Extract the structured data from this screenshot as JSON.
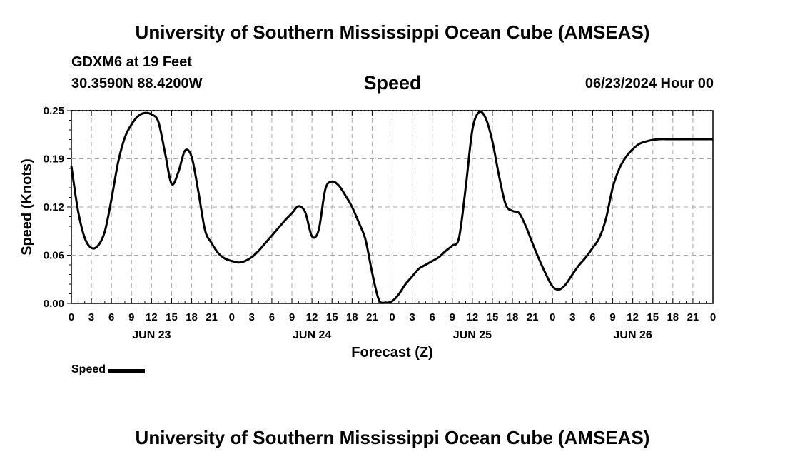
{
  "page": {
    "title_top": "University of Southern Mississippi Ocean Cube (AMSEAS)",
    "title_bottom": "University of Southern Mississippi Ocean Cube (AMSEAS)",
    "station": "GDXM6 at 19 Feet",
    "coords": "30.3590N  88.4200W",
    "variable": "Speed",
    "date": "06/23/2024 Hour 00"
  },
  "chart_data": {
    "type": "line",
    "title": "Speed",
    "xlabel": "Forecast (Z)",
    "ylabel": "Speed (Knots)",
    "ylim": [
      0,
      0.25
    ],
    "yticks": [
      "0.00",
      "0.06",
      "0.12",
      "0.19",
      "0.25"
    ],
    "xlim_hours": [
      0,
      96
    ],
    "xtick_labels": [
      "0",
      "3",
      "6",
      "9",
      "12",
      "15",
      "18",
      "21",
      "0",
      "3",
      "6",
      "9",
      "12",
      "15",
      "18",
      "21",
      "0",
      "3",
      "6",
      "9",
      "12",
      "15",
      "18",
      "21",
      "0",
      "3",
      "6",
      "9",
      "12",
      "15",
      "18",
      "21",
      "0"
    ],
    "day_labels": [
      "JUN 23",
      "JUN 24",
      "JUN 25",
      "JUN 26"
    ],
    "grid": true,
    "legend": "bottom-left",
    "series": [
      {
        "name": "Speed",
        "color": "#000000",
        "x_hours": [
          0,
          1,
          2,
          3,
          4,
          5,
          6,
          7,
          8,
          9,
          10,
          11,
          12,
          13,
          14,
          15,
          16,
          17,
          18,
          19,
          20,
          21,
          22,
          23,
          24,
          25,
          26,
          27,
          28,
          29,
          30,
          31,
          32,
          33,
          34,
          35,
          36,
          37,
          38,
          39,
          40,
          41,
          42,
          43,
          44,
          45,
          46,
          47,
          48,
          49,
          50,
          51,
          52,
          53,
          54,
          55,
          56,
          57,
          58,
          59,
          60,
          61,
          62,
          63,
          64,
          65,
          66,
          67,
          68,
          69,
          70,
          71,
          72,
          73,
          74,
          75,
          76,
          77,
          78,
          79,
          80,
          81,
          82,
          83,
          84,
          85,
          86,
          87,
          88,
          89,
          90,
          91,
          92,
          93,
          94,
          95,
          96
        ],
        "values": [
          0.178,
          0.12,
          0.085,
          0.072,
          0.075,
          0.093,
          0.135,
          0.183,
          0.215,
          0.232,
          0.243,
          0.247,
          0.245,
          0.236,
          0.196,
          0.155,
          0.17,
          0.198,
          0.19,
          0.145,
          0.095,
          0.078,
          0.065,
          0.058,
          0.055,
          0.053,
          0.055,
          0.06,
          0.068,
          0.078,
          0.088,
          0.098,
          0.108,
          0.117,
          0.126,
          0.118,
          0.087,
          0.095,
          0.148,
          0.158,
          0.153,
          0.14,
          0.125,
          0.105,
          0.083,
          0.04,
          0.005,
          0.001,
          0.003,
          0.012,
          0.025,
          0.035,
          0.045,
          0.05,
          0.055,
          0.06,
          0.068,
          0.075,
          0.085,
          0.15,
          0.225,
          0.248,
          0.24,
          0.21,
          0.165,
          0.128,
          0.12,
          0.117,
          0.1,
          0.078,
          0.057,
          0.038,
          0.022,
          0.018,
          0.025,
          0.038,
          0.05,
          0.06,
          0.072,
          0.085,
          0.11,
          0.15,
          0.175,
          0.19,
          0.2,
          0.207,
          0.21,
          0.212,
          0.213,
          0.213,
          0.213,
          0.213,
          0.213,
          0.213,
          0.213,
          0.213,
          0.213
        ]
      }
    ]
  }
}
